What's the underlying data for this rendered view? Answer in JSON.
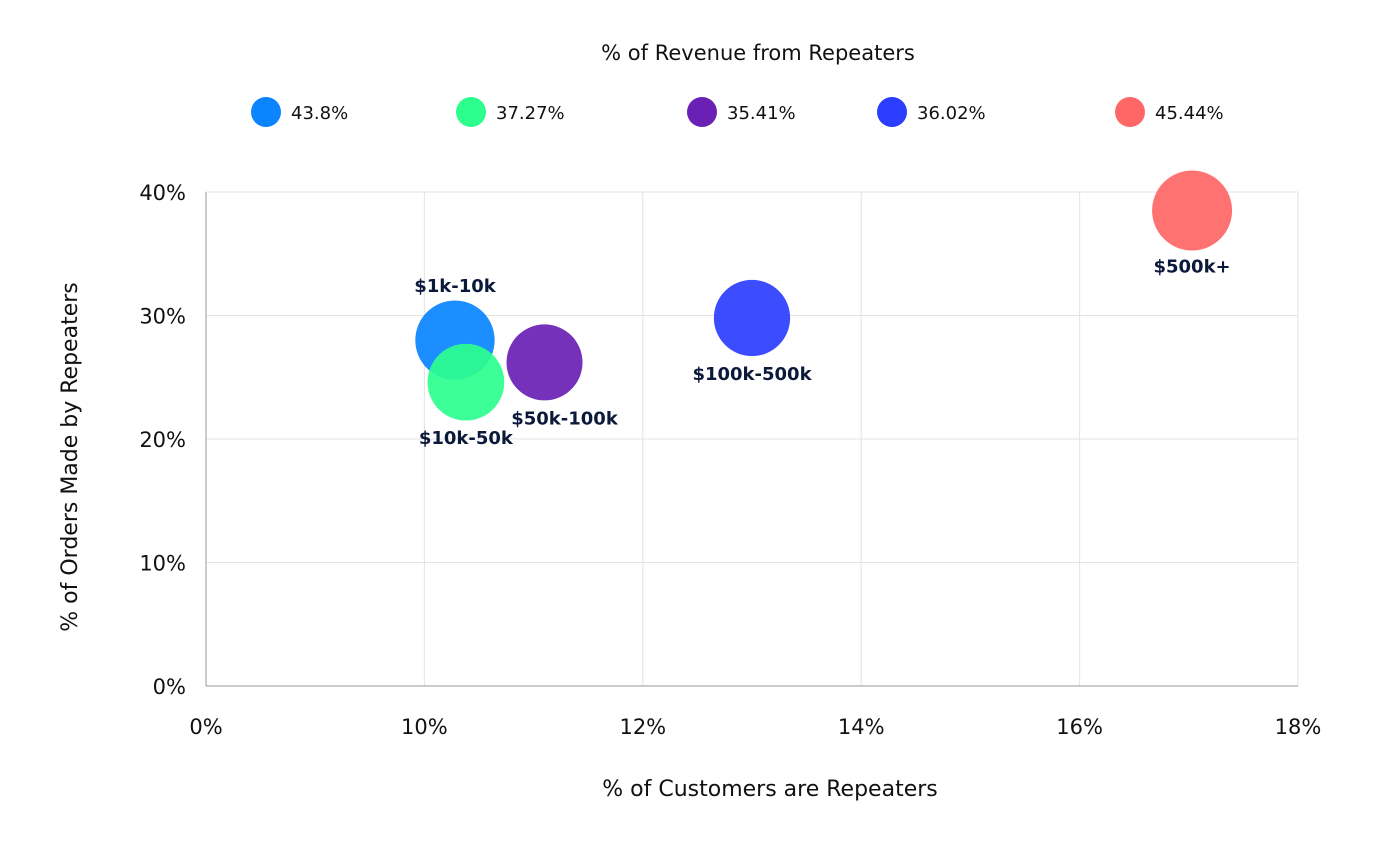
{
  "chart_data": {
    "type": "scatter",
    "subtype": "bubble",
    "legend_title": "% of Revenue from Repeaters",
    "legend_position": "top",
    "xlabel": "% of Customers are Repeaters",
    "ylabel": "% of Orders Made by Repeaters",
    "x_ticks": [
      0,
      10,
      12,
      14,
      16,
      18
    ],
    "x_tick_labels": [
      "0%",
      "10%",
      "12%",
      "14%",
      "16%",
      "18%"
    ],
    "x_scale": "piecewise (0–10% compressed into one tick interval)",
    "y_ticks": [
      0,
      10,
      20,
      30,
      40
    ],
    "y_tick_labels": [
      "0%",
      "10%",
      "20%",
      "30%",
      "40%"
    ],
    "xlim": [
      0,
      18
    ],
    "ylim": [
      0,
      40
    ],
    "grid": true,
    "series": [
      {
        "name": "$1k-10k",
        "legend_label": "43.8%",
        "x": 10.28,
        "y": 28.0,
        "size": 43.8,
        "color": "#0a84ff",
        "label_position": "top"
      },
      {
        "name": "$10k-50k",
        "legend_label": "37.27%",
        "x": 10.38,
        "y": 24.6,
        "size": 37.27,
        "color": "#2dff8e",
        "label_position": "bottom"
      },
      {
        "name": "$50k-100k",
        "legend_label": "35.41%",
        "x": 11.1,
        "y": 26.2,
        "size": 35.41,
        "color": "#6a1fb5",
        "label_position": "bottom-right"
      },
      {
        "name": "$100k-500k",
        "legend_label": "36.02%",
        "x": 13.0,
        "y": 29.8,
        "size": 36.02,
        "color": "#2b3dff",
        "label_position": "bottom"
      },
      {
        "name": "$500k+",
        "legend_label": "45.44%",
        "x": 17.03,
        "y": 38.5,
        "size": 45.44,
        "color": "#ff6666",
        "label_position": "bottom"
      }
    ]
  }
}
